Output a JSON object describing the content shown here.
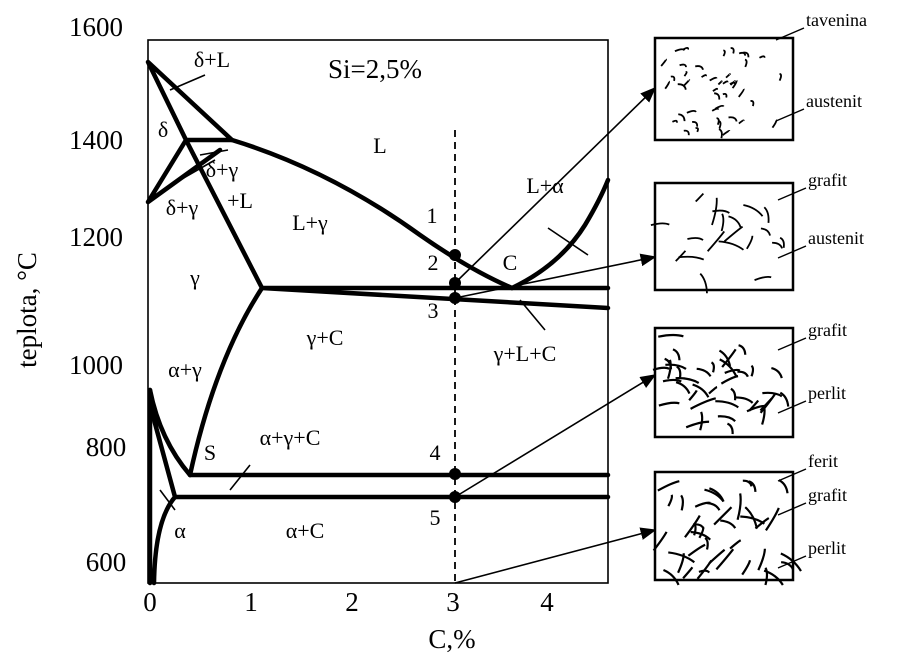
{
  "annotation": "Si=2,5%",
  "axes": {
    "y_label": "teplota, °C",
    "x_label": "C,%",
    "y_ticks": [
      "1600",
      "1400",
      "1200",
      "1000",
      "800",
      "600"
    ],
    "x_ticks": [
      "0",
      "1",
      "2",
      "3",
      "4"
    ]
  },
  "regions": [
    "δ+L",
    "δ",
    "L",
    "δ+γ",
    "+L",
    "L+γ",
    "δ+γ",
    "L+α",
    "C",
    "γ",
    "γ+C",
    "γ+L+C",
    "α+γ",
    "α+γ+C",
    "S",
    "α",
    "α+C"
  ],
  "points": [
    "1",
    "2",
    "3",
    "4",
    "5"
  ],
  "micrographs": [
    {
      "labels": [
        "tavenina",
        "austenit"
      ]
    },
    {
      "labels": [
        "grafit",
        "austenit"
      ]
    },
    {
      "labels": [
        "grafit",
        "perlit"
      ]
    },
    {
      "labels": [
        "ferit",
        "grafit",
        "perlit"
      ]
    }
  ]
}
